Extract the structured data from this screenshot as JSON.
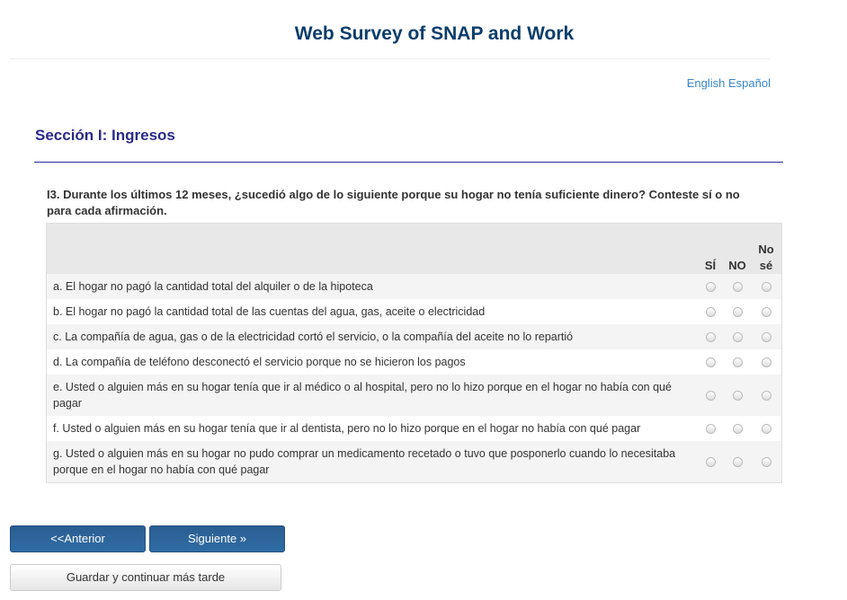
{
  "header": {
    "title": "Web Survey of SNAP and Work"
  },
  "language": {
    "english": "English",
    "spanish": "Español"
  },
  "section": {
    "title": "Sección I: Ingresos"
  },
  "question": {
    "text": "I3. Durante los últimos 12 meses, ¿sucedió algo de lo siguiente porque su hogar no tenía suficiente dinero? Conteste sí o no para cada afirmación.",
    "columns": [
      "SÍ",
      "NO",
      "No sé"
    ],
    "items": [
      {
        "label": "a. El hogar no pagó la cantidad total del alquiler o de la hipoteca"
      },
      {
        "label": "b. El hogar no pagó la cantidad total de las cuentas del agua, gas, aceite o electricidad"
      },
      {
        "label": "c. La compañía de agua, gas o de la electricidad cortó el servicio, o la compañía del aceite no lo repartió"
      },
      {
        "label": "d. La compañía de teléfono desconectó el servicio porque no se hicieron los pagos"
      },
      {
        "label": "e. Usted o alguien más en su hogar tenía que ir al médico o al hospital, pero no lo hizo porque en el hogar no había con qué pagar"
      },
      {
        "label": "f. Usted o alguien más en su hogar tenía que ir al dentista, pero no lo hizo porque en el hogar no había con qué pagar"
      },
      {
        "label": "g. Usted o alguien más en su hogar no pudo comprar un medicamento recetado o tuvo que posponerlo cuando lo necesitaba porque en el hogar no había con qué pagar"
      }
    ]
  },
  "buttons": {
    "previous": "<<Anterior",
    "next": "Siguiente »",
    "save": "Guardar y continuar más tarde"
  }
}
